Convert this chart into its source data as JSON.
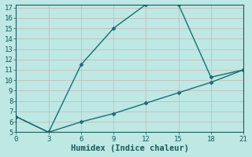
{
  "xlabel": "Humidex (Indice chaleur)",
  "bg_color": "#bde8e4",
  "grid_color": "#c8b4b4",
  "line_color": "#1a6e6e",
  "line1_x": [
    0,
    3,
    6,
    9,
    12,
    15,
    18,
    21
  ],
  "line1_y": [
    6.5,
    5.0,
    11.5,
    15.0,
    17.3,
    17.3,
    10.3,
    11.0
  ],
  "line2_x": [
    0,
    3,
    6,
    9,
    12,
    15,
    18,
    21
  ],
  "line2_y": [
    6.5,
    5.0,
    6.0,
    6.8,
    7.8,
    8.8,
    9.8,
    11.0
  ],
  "xlim": [
    0,
    21
  ],
  "ylim": [
    5,
    17
  ],
  "xticks": [
    0,
    3,
    6,
    9,
    12,
    15,
    18,
    21
  ],
  "yticks": [
    5,
    6,
    7,
    8,
    9,
    10,
    11,
    12,
    13,
    14,
    15,
    16,
    17
  ],
  "marker": "D",
  "markersize": 2.5,
  "linewidth": 1.0,
  "font_color": "#1a5a5a",
  "fontsize_label": 7.5,
  "fontsize_tick": 6.5
}
